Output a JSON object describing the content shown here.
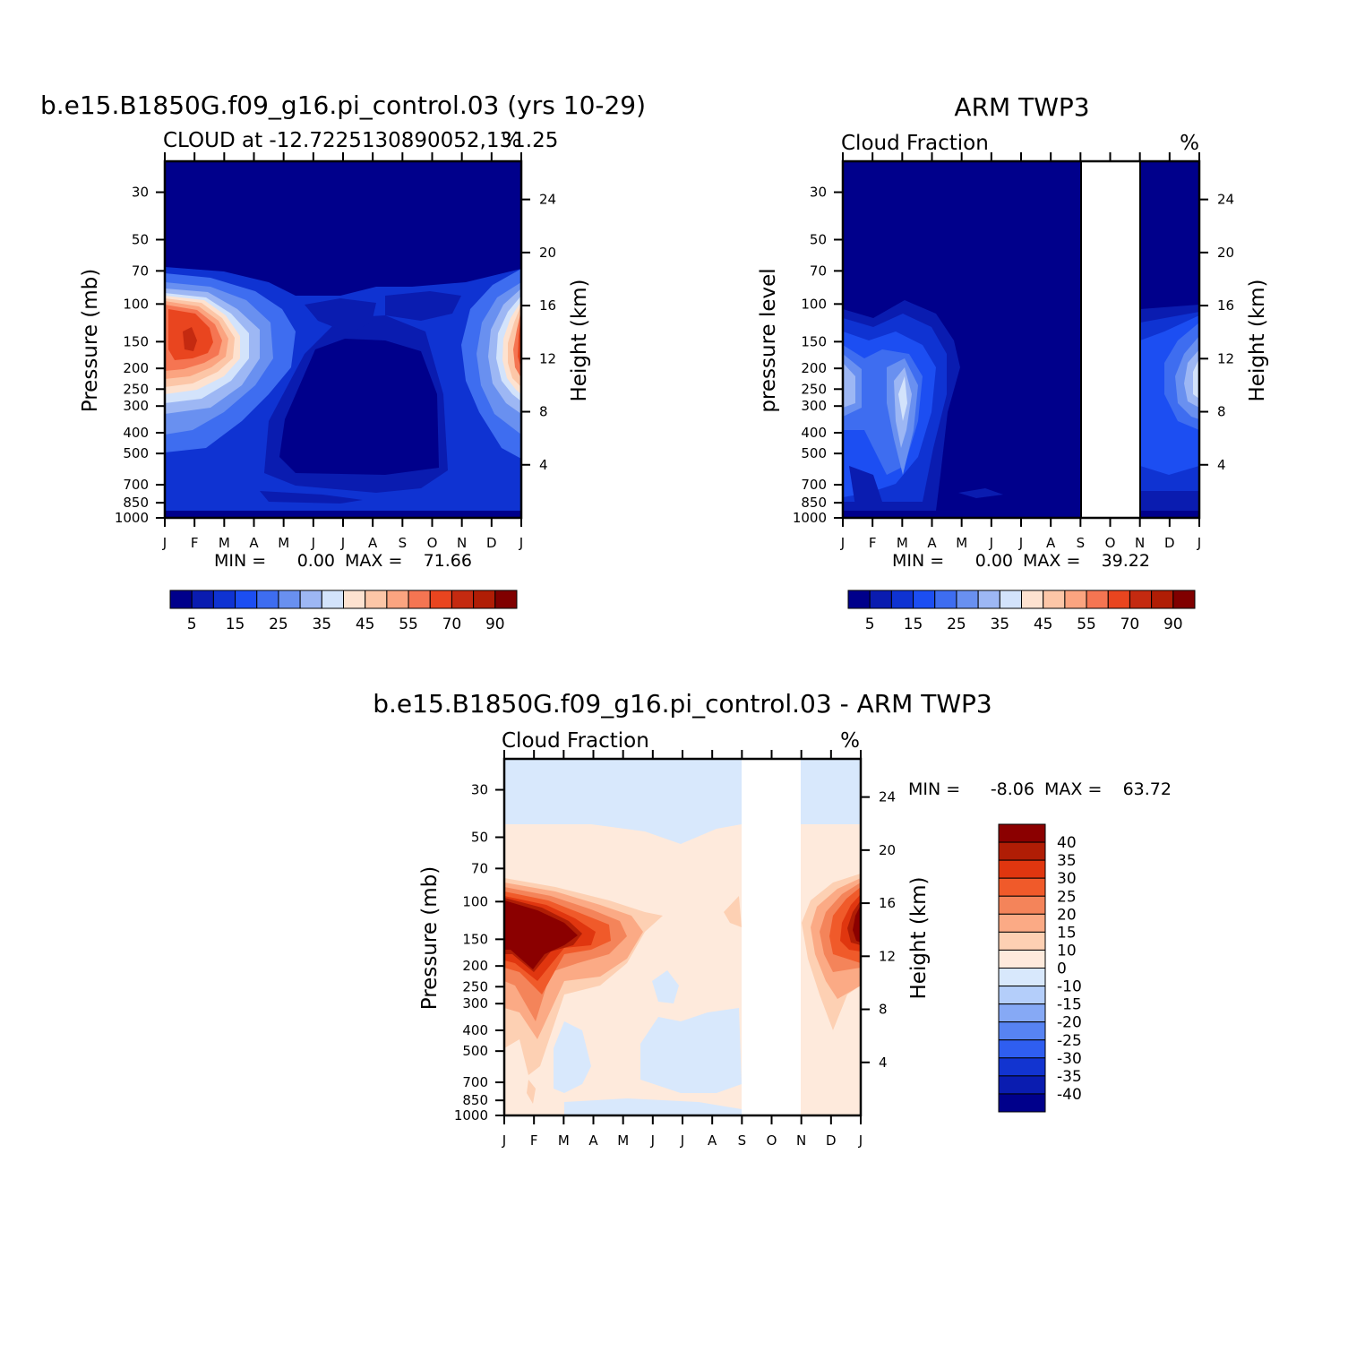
{
  "chart_data": [
    {
      "type": "heatmap",
      "title": "b.e15.B1850G.f09_g16.pi_control.03 (yrs 10-29)",
      "subtitle_left": "CLOUD at -12.7225130890052,131.25",
      "subtitle_right": "%",
      "ylabel": "Pressure (mb)",
      "ylabel_right": "Height (km)",
      "x_categories": [
        "J",
        "F",
        "M",
        "A",
        "M",
        "J",
        "J",
        "A",
        "S",
        "O",
        "N",
        "D",
        "J"
      ],
      "y_ticks": [
        30,
        50,
        70,
        100,
        150,
        200,
        250,
        300,
        400,
        500,
        700,
        850,
        1000
      ],
      "y_right_ticks": [
        24,
        20,
        16,
        12,
        8,
        4
      ],
      "ylim": [
        1000,
        22
      ],
      "min_label": "MIN =",
      "min_value": "0.00",
      "max_label": "MAX =",
      "max_value": "71.66",
      "colorbar_levels": [
        "5",
        "15",
        "25",
        "35",
        "45",
        "55",
        "70",
        "90"
      ],
      "colorbar_colors": [
        "#00008b",
        "#0a1cb0",
        "#0f33d2",
        "#1c4ef2",
        "#3e6df0",
        "#6990f0",
        "#9db7f4",
        "#d3e3fb",
        "#fde2d0",
        "#fcc6a7",
        "#fba480",
        "#f57552",
        "#e9451f",
        "#c42a10",
        "#b01d05",
        "#800000"
      ],
      "max_approx": {
        "month_index": 1,
        "pressure": 150,
        "value": 71.66
      }
    },
    {
      "type": "heatmap",
      "title": "ARM TWP3",
      "subtitle_left": "Cloud Fraction",
      "subtitle_right": "%",
      "ylabel": "pressure level",
      "ylabel_right": "Height (km)",
      "x_categories": [
        "J",
        "F",
        "M",
        "A",
        "M",
        "J",
        "J",
        "A",
        "S",
        "O",
        "N",
        "D",
        "J"
      ],
      "y_ticks": [
        30,
        50,
        70,
        100,
        150,
        200,
        250,
        300,
        400,
        500,
        700,
        850,
        1000
      ],
      "y_right_ticks": [
        24,
        20,
        16,
        12,
        8,
        4
      ],
      "missing_months": [
        "S",
        "O"
      ],
      "min_label": "MIN =",
      "min_value": "0.00",
      "max_label": "MAX =",
      "max_value": "39.22",
      "colorbar_levels": [
        "5",
        "15",
        "25",
        "35",
        "45",
        "55",
        "70",
        "90"
      ],
      "colorbar_colors": [
        "#00008b",
        "#0a1cb0",
        "#0f33d2",
        "#1c4ef2",
        "#3e6df0",
        "#6990f0",
        "#9db7f4",
        "#d3e3fb",
        "#fde2d0",
        "#fcc6a7",
        "#fba480",
        "#f57552",
        "#e9451f",
        "#c42a10",
        "#b01d05",
        "#800000"
      ]
    },
    {
      "type": "heatmap",
      "title": "b.e15.B1850G.f09_g16.pi_control.03 - ARM TWP3",
      "subtitle_left": "Cloud Fraction",
      "subtitle_right": "%",
      "ylabel": "Pressure (mb)",
      "ylabel_right": "Height (km)",
      "x_categories": [
        "J",
        "F",
        "M",
        "A",
        "M",
        "J",
        "J",
        "A",
        "S",
        "O",
        "N",
        "D",
        "J"
      ],
      "y_ticks": [
        30,
        50,
        70,
        100,
        150,
        200,
        250,
        300,
        400,
        500,
        700,
        850,
        1000
      ],
      "y_right_ticks": [
        24,
        20,
        16,
        12,
        8,
        4
      ],
      "missing_months": [
        "S",
        "O"
      ],
      "min_label": "MIN =",
      "min_value": "-8.06",
      "max_label": "MAX =",
      "max_value": "63.72",
      "colorbar_levels": [
        "40",
        "35",
        "30",
        "25",
        "20",
        "15",
        "10",
        "0",
        "-10",
        "-15",
        "-20",
        "-25",
        "-30",
        "-35",
        "-40"
      ],
      "colorbar_colors": [
        "#8b0000",
        "#b01d05",
        "#e0360f",
        "#f05a2a",
        "#f4845a",
        "#fbaa85",
        "#fdd0b3",
        "#feeadc",
        "#d8e8fc",
        "#b4cefa",
        "#86a9f5",
        "#5783f2",
        "#2f5ef0",
        "#1234d0",
        "#0a1cb0",
        "#00008b"
      ]
    }
  ]
}
